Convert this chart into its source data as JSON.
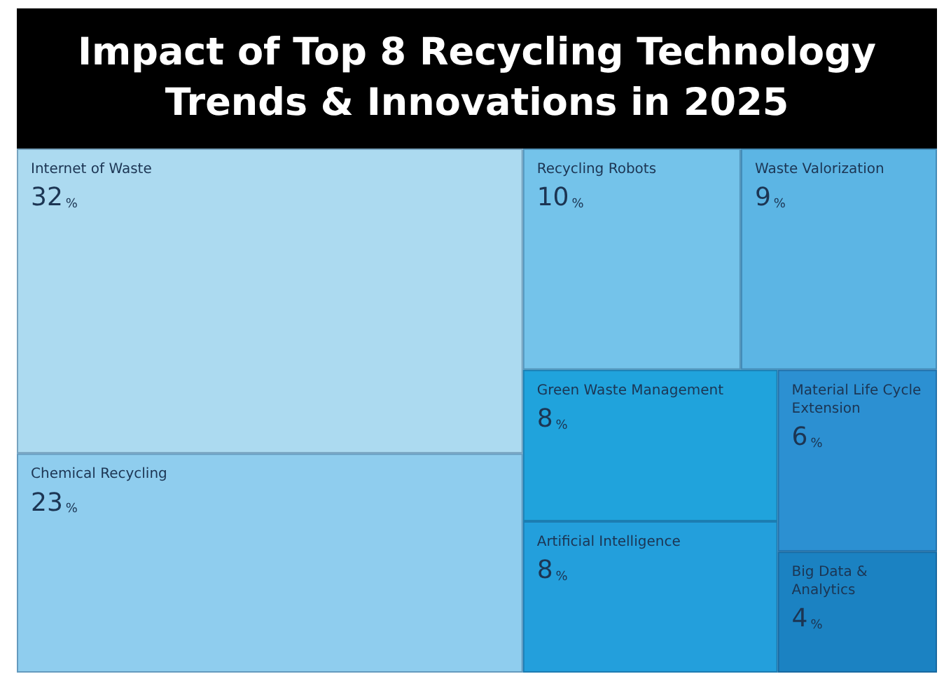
{
  "chart_data": {
    "type": "other",
    "title": "Impact of Top 8 Recycling Technology Trends & Innovations in 2025",
    "categories": [
      "Internet of Waste",
      "Chemical Recycling",
      "Recycling Robots",
      "Waste Valorization",
      "Green Waste Management",
      "Artificial Intelligence",
      "Material Life Cycle Extension",
      "Big Data & Analytics"
    ],
    "values": [
      32,
      23,
      10,
      9,
      8,
      8,
      6,
      4
    ],
    "value_labels": [
      "32%",
      "23%",
      "10%",
      "9%",
      "8%",
      "8%",
      "6%",
      "4%"
    ],
    "colors": [
      "#acdaf0",
      "#8fcdee",
      "#74c3ea",
      "#5cb5e4",
      "#20a3dc",
      "#239fdc",
      "#2c90d2",
      "#1b82c2"
    ]
  }
}
